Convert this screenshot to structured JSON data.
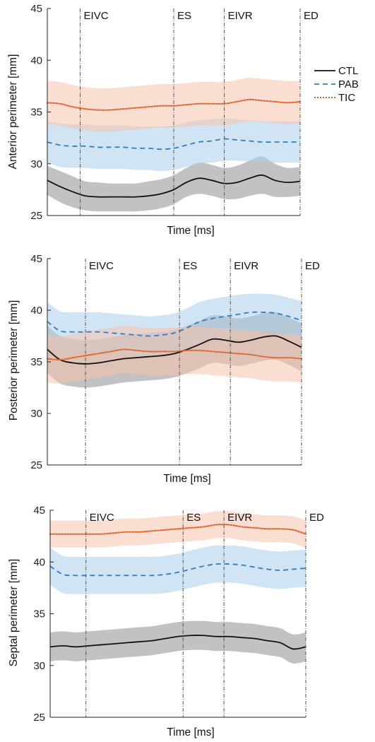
{
  "colors": {
    "CTL": "#111111",
    "PAB": "#2f7fc2",
    "TIC": "#e2642d",
    "CTL_band": "#8f8f8f",
    "PAB_band": "#a9cdea",
    "TIC_band": "#f6c3ad"
  },
  "chart_data": [
    {
      "type": "line",
      "title": "",
      "xlabel": "Time [ms]",
      "ylabel": "Anterior perimeter [mm]",
      "ylim": [
        25,
        45
      ],
      "yticks": [
        25,
        30,
        35,
        40,
        45
      ],
      "x_domain": [
        0,
        1
      ],
      "phase_lines": [
        {
          "label": "EIVC",
          "x": 0.13
        },
        {
          "label": "ES",
          "x": 0.5
        },
        {
          "label": "EIVR",
          "x": 0.7
        },
        {
          "label": "ED",
          "x": 1.0
        }
      ],
      "legend": {
        "position": "right",
        "entries": [
          "CTL",
          "PAB",
          "TIC"
        ]
      },
      "x": [
        0,
        0.05,
        0.1,
        0.15,
        0.2,
        0.25,
        0.3,
        0.35,
        0.4,
        0.45,
        0.5,
        0.55,
        0.6,
        0.65,
        0.7,
        0.75,
        0.8,
        0.85,
        0.9,
        0.95,
        1.0
      ],
      "series": [
        {
          "name": "CTL",
          "values": [
            28.4,
            27.8,
            27.3,
            26.9,
            26.8,
            26.8,
            26.8,
            26.8,
            26.9,
            27.1,
            27.5,
            28.2,
            28.6,
            28.4,
            28.1,
            28.2,
            28.6,
            28.9,
            28.4,
            28.2,
            28.3
          ],
          "upper": [
            29.8,
            29.3,
            28.8,
            28.3,
            28.2,
            28.1,
            28.1,
            28.1,
            28.3,
            28.5,
            28.9,
            29.6,
            30.1,
            29.9,
            29.6,
            29.8,
            30.3,
            30.7,
            30.0,
            29.6,
            29.7
          ],
          "lower": [
            27.0,
            26.3,
            25.8,
            25.5,
            25.4,
            25.4,
            25.4,
            25.4,
            25.5,
            25.7,
            26.1,
            26.8,
            27.1,
            26.9,
            26.6,
            26.6,
            26.9,
            27.1,
            26.8,
            26.8,
            26.9
          ]
        },
        {
          "name": "PAB",
          "values": [
            32.1,
            31.8,
            31.7,
            31.7,
            31.6,
            31.6,
            31.6,
            31.5,
            31.5,
            31.4,
            31.5,
            31.8,
            32.1,
            32.2,
            32.4,
            32.3,
            32.2,
            32.1,
            32.1,
            32.1,
            32.1
          ],
          "upper": [
            34.1,
            33.9,
            33.8,
            33.8,
            33.7,
            33.7,
            33.7,
            33.6,
            33.6,
            33.6,
            33.7,
            34.0,
            34.2,
            34.3,
            34.4,
            34.3,
            34.2,
            34.1,
            34.1,
            34.1,
            34.1
          ],
          "lower": [
            30.1,
            29.7,
            29.6,
            29.6,
            29.5,
            29.5,
            29.5,
            29.4,
            29.4,
            29.3,
            29.4,
            29.7,
            30.0,
            30.1,
            30.3,
            30.3,
            30.2,
            30.1,
            30.1,
            30.1,
            30.1
          ]
        },
        {
          "name": "TIC",
          "values": [
            35.9,
            35.8,
            35.5,
            35.3,
            35.2,
            35.2,
            35.3,
            35.4,
            35.5,
            35.6,
            35.6,
            35.7,
            35.8,
            35.8,
            35.8,
            36.0,
            36.2,
            36.1,
            36.0,
            35.9,
            36.0
          ],
          "upper": [
            38.0,
            37.9,
            37.6,
            37.4,
            37.3,
            37.3,
            37.4,
            37.5,
            37.6,
            37.7,
            37.7,
            37.8,
            37.9,
            37.9,
            37.9,
            38.1,
            38.3,
            38.2,
            38.1,
            38.0,
            38.0
          ],
          "lower": [
            33.8,
            33.7,
            33.4,
            33.2,
            33.1,
            33.1,
            33.2,
            33.3,
            33.4,
            33.5,
            33.5,
            33.6,
            33.7,
            33.7,
            33.7,
            33.9,
            34.1,
            34.0,
            33.9,
            33.8,
            33.9
          ]
        }
      ]
    },
    {
      "type": "line",
      "title": "",
      "xlabel": "Time [ms]",
      "ylabel": "Posterior perimeter [mm]",
      "ylim": [
        25,
        45
      ],
      "yticks": [
        25,
        30,
        35,
        40,
        45
      ],
      "x_domain": [
        0,
        1
      ],
      "phase_lines": [
        {
          "label": "EIVC",
          "x": 0.15
        },
        {
          "label": "ES",
          "x": 0.52
        },
        {
          "label": "EIVR",
          "x": 0.72
        },
        {
          "label": "ED",
          "x": 1.0
        }
      ],
      "x": [
        0,
        0.05,
        0.1,
        0.15,
        0.2,
        0.25,
        0.3,
        0.35,
        0.4,
        0.45,
        0.5,
        0.55,
        0.6,
        0.65,
        0.7,
        0.75,
        0.8,
        0.85,
        0.9,
        0.95,
        1.0
      ],
      "series": [
        {
          "name": "CTL",
          "values": [
            36.2,
            35.2,
            34.9,
            34.8,
            34.9,
            35.1,
            35.3,
            35.4,
            35.5,
            35.6,
            35.8,
            36.2,
            36.7,
            37.2,
            37.1,
            36.9,
            37.1,
            37.4,
            37.5,
            37.0,
            36.4
          ],
          "upper": [
            38.5,
            37.5,
            37.2,
            37.1,
            37.2,
            37.4,
            37.6,
            37.7,
            37.8,
            37.9,
            38.1,
            38.5,
            39.0,
            39.5,
            39.4,
            39.2,
            39.4,
            39.7,
            39.8,
            39.3,
            38.7
          ],
          "lower": [
            33.9,
            32.9,
            32.6,
            32.5,
            32.6,
            32.8,
            33.0,
            33.1,
            33.2,
            33.3,
            33.5,
            33.9,
            34.4,
            34.9,
            34.8,
            34.6,
            34.8,
            35.1,
            35.2,
            34.7,
            34.1
          ]
        },
        {
          "name": "PAB",
          "values": [
            38.9,
            38.0,
            37.9,
            37.9,
            37.9,
            37.8,
            37.7,
            37.6,
            37.5,
            37.6,
            37.8,
            38.3,
            38.9,
            39.2,
            39.4,
            39.6,
            39.8,
            39.8,
            39.7,
            39.4,
            39.0
          ],
          "upper": [
            40.8,
            39.9,
            39.8,
            39.8,
            39.8,
            39.7,
            39.6,
            39.5,
            39.4,
            39.5,
            39.7,
            40.2,
            40.8,
            41.1,
            41.3,
            41.5,
            41.6,
            41.6,
            41.5,
            41.2,
            40.9
          ],
          "lower": [
            37.0,
            36.1,
            36.0,
            36.0,
            36.0,
            35.9,
            35.8,
            35.7,
            35.6,
            35.7,
            35.9,
            36.4,
            37.0,
            37.3,
            37.5,
            37.7,
            37.9,
            37.9,
            37.8,
            37.5,
            37.1
          ]
        },
        {
          "name": "TIC",
          "values": [
            35.3,
            35.2,
            35.4,
            35.6,
            35.8,
            36.0,
            36.2,
            36.1,
            36.0,
            36.0,
            36.0,
            36.1,
            36.1,
            36.0,
            35.9,
            35.8,
            35.7,
            35.5,
            35.4,
            35.4,
            35.3
          ],
          "upper": [
            37.6,
            37.5,
            37.7,
            37.9,
            38.1,
            38.3,
            38.5,
            38.4,
            38.3,
            38.3,
            38.3,
            38.4,
            38.4,
            38.3,
            38.2,
            38.1,
            38.0,
            37.8,
            37.7,
            37.7,
            37.6
          ],
          "lower": [
            33.0,
            32.9,
            33.1,
            33.3,
            33.5,
            33.7,
            33.9,
            33.8,
            33.7,
            33.7,
            33.7,
            33.8,
            33.8,
            33.7,
            33.6,
            33.5,
            33.4,
            33.2,
            33.1,
            33.1,
            33.0
          ]
        }
      ]
    },
    {
      "type": "line",
      "title": "",
      "xlabel": "Time [ms]",
      "ylabel": "Septal perimeter [mm]",
      "ylim": [
        25,
        45
      ],
      "yticks": [
        25,
        30,
        35,
        40,
        45
      ],
      "x_domain": [
        0,
        1
      ],
      "phase_lines": [
        {
          "label": "EIVC",
          "x": 0.14
        },
        {
          "label": "ES",
          "x": 0.52
        },
        {
          "label": "EIVR",
          "x": 0.68
        },
        {
          "label": "ED",
          "x": 1.0
        }
      ],
      "x": [
        0,
        0.05,
        0.1,
        0.15,
        0.2,
        0.25,
        0.3,
        0.35,
        0.4,
        0.45,
        0.5,
        0.55,
        0.6,
        0.65,
        0.7,
        0.75,
        0.8,
        0.85,
        0.9,
        0.95,
        1.0
      ],
      "series": [
        {
          "name": "CTL",
          "values": [
            31.8,
            31.9,
            31.8,
            31.9,
            32.0,
            32.1,
            32.2,
            32.3,
            32.4,
            32.6,
            32.8,
            32.9,
            32.9,
            32.8,
            32.8,
            32.7,
            32.6,
            32.4,
            32.2,
            31.6,
            31.8
          ],
          "upper": [
            33.2,
            33.3,
            33.2,
            33.3,
            33.4,
            33.5,
            33.6,
            33.7,
            33.8,
            34.0,
            34.2,
            34.3,
            34.3,
            34.2,
            34.2,
            34.1,
            34.0,
            33.8,
            33.6,
            33.0,
            33.2
          ],
          "lower": [
            30.4,
            30.5,
            30.4,
            30.5,
            30.6,
            30.7,
            30.8,
            30.9,
            31.0,
            31.2,
            31.4,
            31.5,
            31.5,
            31.4,
            31.4,
            31.3,
            31.2,
            31.0,
            30.8,
            30.2,
            30.4
          ]
        },
        {
          "name": "PAB",
          "values": [
            39.6,
            38.8,
            38.7,
            38.7,
            38.7,
            38.7,
            38.7,
            38.7,
            38.7,
            38.8,
            39.0,
            39.3,
            39.6,
            39.8,
            39.8,
            39.7,
            39.5,
            39.3,
            39.2,
            39.3,
            39.4
          ],
          "upper": [
            41.4,
            40.6,
            40.5,
            40.5,
            40.5,
            40.5,
            40.5,
            40.5,
            40.5,
            40.6,
            40.8,
            41.1,
            41.4,
            41.6,
            41.6,
            41.5,
            41.3,
            41.1,
            41.0,
            41.1,
            41.2
          ],
          "lower": [
            37.8,
            37.0,
            36.9,
            36.9,
            36.9,
            36.9,
            36.9,
            36.9,
            36.9,
            37.0,
            37.2,
            37.5,
            37.8,
            38.0,
            38.0,
            37.9,
            37.7,
            37.5,
            37.4,
            37.5,
            37.6
          ]
        },
        {
          "name": "TIC",
          "values": [
            42.7,
            42.7,
            42.7,
            42.7,
            42.7,
            42.8,
            42.9,
            42.9,
            43.0,
            43.1,
            43.2,
            43.3,
            43.4,
            43.6,
            43.6,
            43.4,
            43.3,
            43.2,
            43.2,
            43.1,
            42.7
          ],
          "upper": [
            44.0,
            44.0,
            44.0,
            44.0,
            44.0,
            44.1,
            44.2,
            44.2,
            44.3,
            44.4,
            44.5,
            44.6,
            44.7,
            44.9,
            44.9,
            44.7,
            44.6,
            44.5,
            44.5,
            44.4,
            44.0
          ],
          "lower": [
            41.4,
            41.4,
            41.4,
            41.4,
            41.4,
            41.5,
            41.6,
            41.6,
            41.7,
            41.8,
            41.9,
            42.0,
            42.1,
            42.3,
            42.3,
            42.1,
            42.0,
            41.9,
            41.9,
            41.8,
            41.4
          ]
        }
      ]
    }
  ]
}
